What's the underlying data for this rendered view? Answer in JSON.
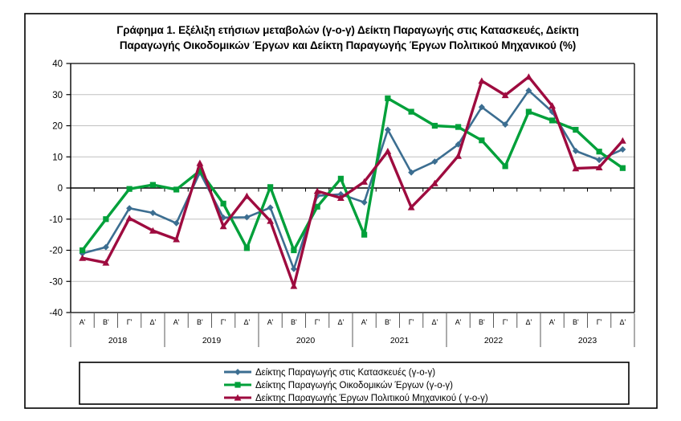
{
  "figure": {
    "title_line1": "Γράφημα 1. Εξέλιξη ετήσιων μεταβολών (γ-ο-γ) Δείκτη Παραγωγής στις Κατασκευές, Δείκτη",
    "title_line2": "Παραγωγής Οικοδομικών Έργων και Δείκτη Παραγωγής Έργων Πολιτικού Μηχανικού (%)"
  },
  "chart_data": {
    "type": "line",
    "title": "Γράφημα 1. Εξέλιξη ετήσιων μεταβολών (γ-ο-γ) Δείκτη Παραγωγής στις Κατασκευές, Δείκτη Παραγωγής Οικοδομικών Έργων και Δείκτη Παραγωγής Έργων Πολιτικού Μηχανικού (%)",
    "ylim": [
      -40,
      40
    ],
    "yticks": [
      40,
      30,
      20,
      10,
      0,
      -10,
      -20,
      -30,
      -40
    ],
    "grid": "horizontal",
    "legend_position": "bottom",
    "quarter_labels": [
      "Α'",
      "Β'",
      "Γ'",
      "Δ'"
    ],
    "years": [
      "2018",
      "2019",
      "2020",
      "2021",
      "2022",
      "2023"
    ],
    "axis_color": "#000000",
    "gridline_color": "#c0c0c0",
    "series": [
      {
        "name": "Δείκτης Παραγωγής στις Κατασκευές (γ-ο-γ)",
        "color": "#3c6e91",
        "marker": "diamond",
        "line_width": 2.6,
        "values": [
          -21,
          -19,
          -6.5,
          -8,
          -11.3,
          5,
          -9.5,
          -9.4,
          -6.3,
          -26,
          -2.5,
          -2,
          -4.6,
          18.7,
          5,
          8.5,
          14,
          26,
          20.4,
          31.3,
          24.5,
          11.9,
          9,
          12.4
        ]
      },
      {
        "name": "Δείκτης Παραγωγής Οικοδομικών Έργων (γ-ο-γ)",
        "color": "#00a03a",
        "marker": "square",
        "line_width": 3.4,
        "values": [
          -20,
          -10,
          -0.3,
          1,
          -0.5,
          5.5,
          -5,
          -19.3,
          0.3,
          -20,
          -6,
          3,
          -15,
          28.8,
          24.5,
          20,
          19.6,
          15.3,
          7,
          24.5,
          21.7,
          18.7,
          11.7,
          6.4
        ]
      },
      {
        "name": "Δείκτης Παραγωγής Έργων Πολιτικού Μηχανικού ( γ-ο-γ)",
        "color": "#9e0b3f",
        "marker": "triangle",
        "line_width": 3.4,
        "values": [
          -22.5,
          -24,
          -9.7,
          -13.7,
          -16.5,
          8,
          -12.3,
          -2.6,
          -10.6,
          -31.5,
          -1,
          -3.2,
          2,
          11.8,
          -6.2,
          1.5,
          10.3,
          34.4,
          29.8,
          35.7,
          26.4,
          6.3,
          6.6,
          15.2
        ]
      }
    ]
  }
}
